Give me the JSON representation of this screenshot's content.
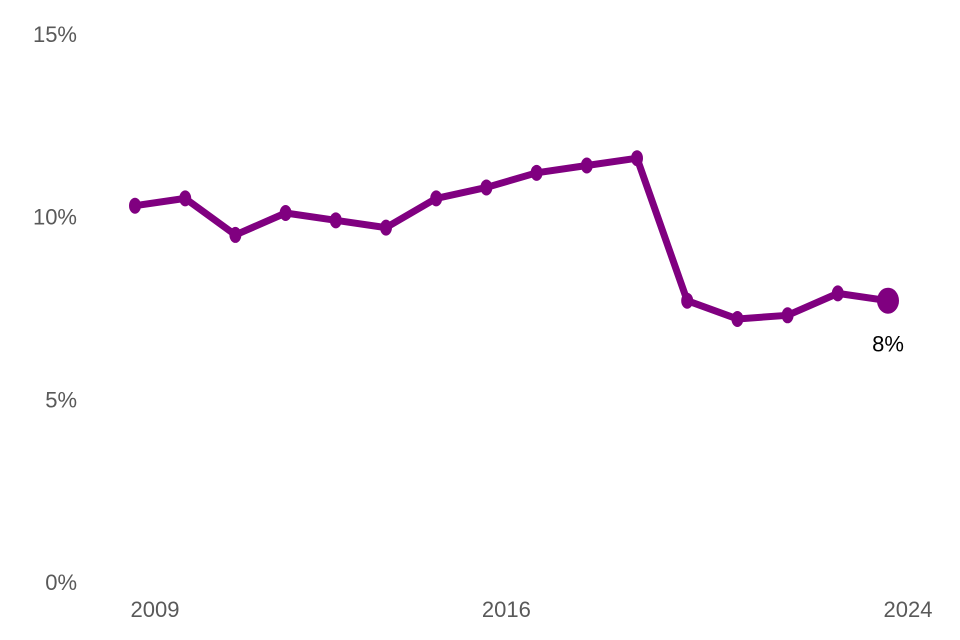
{
  "chart_data": {
    "type": "line",
    "title": "",
    "xlabel": "",
    "ylabel": "",
    "x": [
      2009,
      2010,
      2011,
      2012,
      2013,
      2014,
      2015,
      2016,
      2017,
      2018,
      2019,
      2020,
      2021,
      2022,
      2023,
      2024
    ],
    "series": [
      {
        "values": [
          10.3,
          10.5,
          9.5,
          10.1,
          9.9,
          9.7,
          10.5,
          10.8,
          11.2,
          11.4,
          11.6,
          7.7,
          7.2,
          7.3,
          7.9,
          7.7
        ],
        "color": "#800080"
      }
    ],
    "end_label": "8%",
    "ylim": [
      0,
      15
    ],
    "yticks": [
      0,
      5,
      10,
      15
    ],
    "ytick_labels": [
      "0%",
      "5%",
      "10%",
      "15%"
    ],
    "xticks": [
      2009,
      2016,
      2024
    ],
    "xtick_labels": [
      "2009",
      "2016",
      "2024"
    ],
    "grid": false,
    "legend": "none"
  }
}
